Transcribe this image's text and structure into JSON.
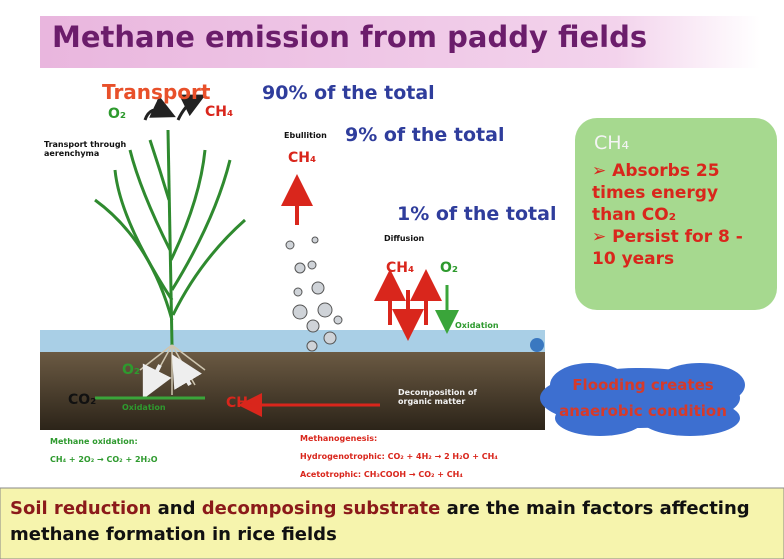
{
  "title": "Methane emission from paddy fields",
  "plant": {
    "label": "Transport",
    "o2": "O₂",
    "ch4": "CH₄",
    "share": "90% of the total",
    "note": "Transport through aerenchyma"
  },
  "ebullition": {
    "label": "Ebullition",
    "share": "9% of the total",
    "ch4": "CH₄"
  },
  "diffusion": {
    "label": "Diffusion",
    "share": "1% of the total",
    "ch4": "CH₄",
    "o2": "O₂",
    "oxidation": "Oxidation"
  },
  "soil": {
    "o2": "O₂",
    "co2": "CO₂",
    "oxidation": "Oxidation",
    "ch4": "CH₄",
    "decomposition": "Decomposition of organic matter"
  },
  "methane_oxidation": {
    "label": "Methane oxidation:",
    "equation": "CH₄ + 2O₂ → CO₂ + 2H₂O"
  },
  "methanogenesis": {
    "label": "Methanogenesis:",
    "hydrogenotrophic": "Hydrogenotrophic: CO₂ + 4H₂ → 2 H₂O + CH₄",
    "acetotrophic": "Acetotrophic: CH₃COOH → CO₂ + CH₄"
  },
  "callout": {
    "heading": "CH₄",
    "points": [
      "➢ Absorbs 25 times energy than CO₂",
      "➢ Persist for 8 - 10 years"
    ]
  },
  "cloud": "Flooding creates anaerobic condition",
  "footer": {
    "parts": [
      "Soil reduction",
      " and ",
      "decomposing substrate",
      " are the main factors affecting methane formation in rice fields"
    ]
  }
}
